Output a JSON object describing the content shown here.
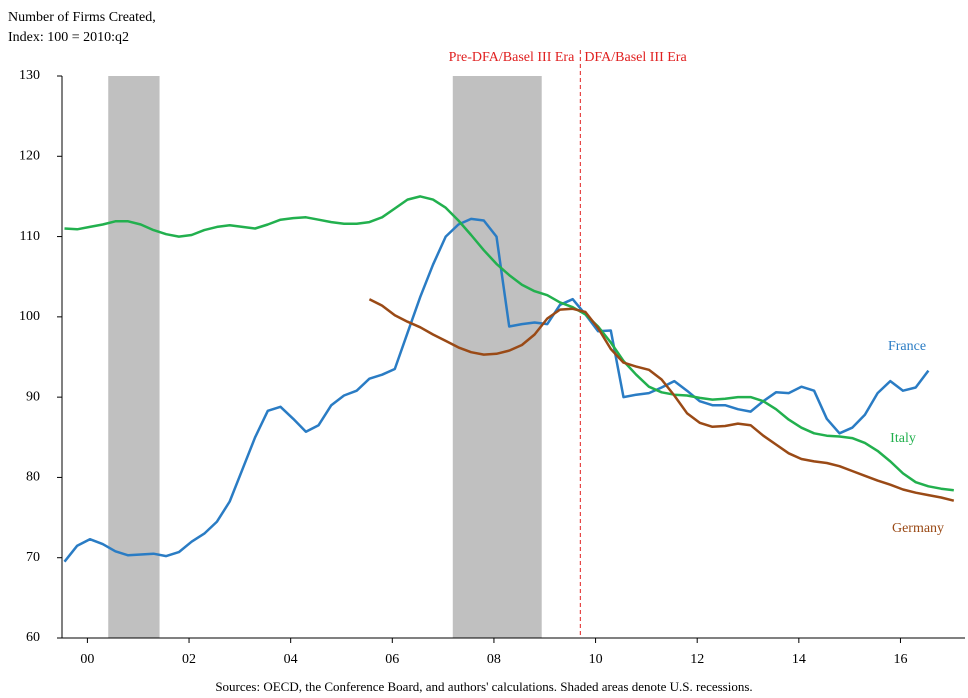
{
  "chart_data": {
    "type": "line",
    "title": "Number of Firms Created,",
    "subtitle": "Index: 100 = 2010:q2",
    "source": "Sources: OECD, the Conference Board, and authors' calculations. Shaded areas denote U.S. recessions.",
    "x": [
      1999.55,
      1999.8,
      2000.05,
      2000.3,
      2000.55,
      2000.8,
      2001.05,
      2001.3,
      2001.55,
      2001.8,
      2002.05,
      2002.3,
      2002.55,
      2002.8,
      2003.05,
      2003.3,
      2003.55,
      2003.8,
      2004.05,
      2004.3,
      2004.55,
      2004.8,
      2005.05,
      2005.3,
      2005.55,
      2005.8,
      2006.05,
      2006.3,
      2006.55,
      2006.8,
      2007.05,
      2007.3,
      2007.55,
      2007.8,
      2008.05,
      2008.3,
      2008.55,
      2008.8,
      2009.05,
      2009.3,
      2009.55,
      2009.8,
      2010.05,
      2010.3,
      2010.55,
      2010.8,
      2011.05,
      2011.3,
      2011.55,
      2011.8,
      2012.05,
      2012.3,
      2012.55,
      2012.8,
      2013.05,
      2013.3,
      2013.55,
      2013.8,
      2014.05,
      2014.3,
      2014.55,
      2014.8,
      2015.05,
      2015.3,
      2015.55,
      2015.8,
      2016.05,
      2016.3,
      2016.55,
      2016.8,
      2017.05
    ],
    "series": [
      {
        "name": "France",
        "color": "#2a7cc4",
        "values": [
          69.5,
          71.5,
          72.3,
          71.7,
          70.8,
          70.3,
          70.4,
          70.5,
          70.2,
          70.7,
          72,
          73,
          74.5,
          77,
          81,
          85,
          88.3,
          88.8,
          87.3,
          85.7,
          86.5,
          89,
          90.2,
          90.8,
          92.3,
          92.8,
          93.5,
          98,
          102.5,
          106.5,
          110,
          111.5,
          112.2,
          112,
          110,
          98.8,
          99.1,
          99.3,
          99.1,
          101.5,
          102.2,
          100.3,
          98.2,
          98.3,
          90,
          90.3,
          90.5,
          91.2,
          92,
          90.8,
          89.5,
          89,
          89,
          88.5,
          88.2,
          89.5,
          90.6,
          90.5,
          91.3,
          90.8,
          87.3,
          85.5,
          86.2,
          87.8,
          90.5,
          92,
          90.8,
          91.2,
          93.3,
          null,
          null
        ]
      },
      {
        "name": "Italy",
        "color": "#22b04e",
        "values": [
          111,
          110.9,
          111.2,
          111.5,
          111.9,
          111.9,
          111.5,
          110.8,
          110.3,
          110,
          110.2,
          110.8,
          111.2,
          111.4,
          111.2,
          111,
          111.5,
          112.1,
          112.3,
          112.4,
          112.1,
          111.8,
          111.6,
          111.6,
          111.8,
          112.4,
          113.5,
          114.6,
          115,
          114.6,
          113.6,
          112,
          110.2,
          108.3,
          106.6,
          105.2,
          104,
          103.2,
          102.7,
          101.8,
          101.2,
          100.3,
          98.8,
          96.8,
          94.5,
          92.8,
          91.3,
          90.6,
          90.3,
          90.2,
          89.9,
          89.7,
          89.8,
          90,
          90,
          89.5,
          88.5,
          87.2,
          86.2,
          85.5,
          85.2,
          85.1,
          84.9,
          84.3,
          83.3,
          82,
          80.5,
          79.4,
          78.9,
          78.6,
          78.4
        ]
      },
      {
        "name": "Germany",
        "color": "#9a4a16",
        "values": [
          null,
          null,
          null,
          null,
          null,
          null,
          null,
          null,
          null,
          null,
          null,
          null,
          null,
          null,
          null,
          null,
          null,
          null,
          null,
          null,
          null,
          null,
          null,
          null,
          102.2,
          101.4,
          100.2,
          99.4,
          98.7,
          97.8,
          97,
          96.2,
          95.6,
          95.3,
          95.4,
          95.8,
          96.5,
          97.8,
          99.8,
          100.9,
          101,
          100.6,
          98.6,
          96,
          94.3,
          93.8,
          93.4,
          92.2,
          90.2,
          88,
          86.8,
          86.3,
          86.4,
          86.7,
          86.5,
          85.2,
          84.1,
          83,
          82.3,
          82,
          81.8,
          81.4,
          80.8,
          80.2,
          79.6,
          79.1,
          78.5,
          78.1,
          77.8,
          77.5,
          77.1
        ]
      }
    ],
    "recessions": [
      [
        2000.41,
        2001.42
      ],
      [
        2007.19,
        2008.94
      ]
    ],
    "recession_color": "#c0c0c0",
    "era_line": 2009.7,
    "era_labels": [
      "Pre-DFA/Basel III Era",
      "DFA/Basel III Era"
    ],
    "xlim": [
      1999.5,
      2017.27
    ],
    "xticks": [
      {
        "value": 2000,
        "label": "00"
      },
      {
        "value": 2002,
        "label": "02"
      },
      {
        "value": 2004,
        "label": "04"
      },
      {
        "value": 2006,
        "label": "06"
      },
      {
        "value": 2008,
        "label": "08"
      },
      {
        "value": 2010,
        "label": "10"
      },
      {
        "value": 2012,
        "label": "12"
      },
      {
        "value": 2014,
        "label": "14"
      },
      {
        "value": 2016,
        "label": "16"
      }
    ],
    "ylim": [
      60,
      130
    ],
    "yticks": [
      60,
      70,
      80,
      90,
      100,
      110,
      120,
      130
    ],
    "grid": false
  }
}
